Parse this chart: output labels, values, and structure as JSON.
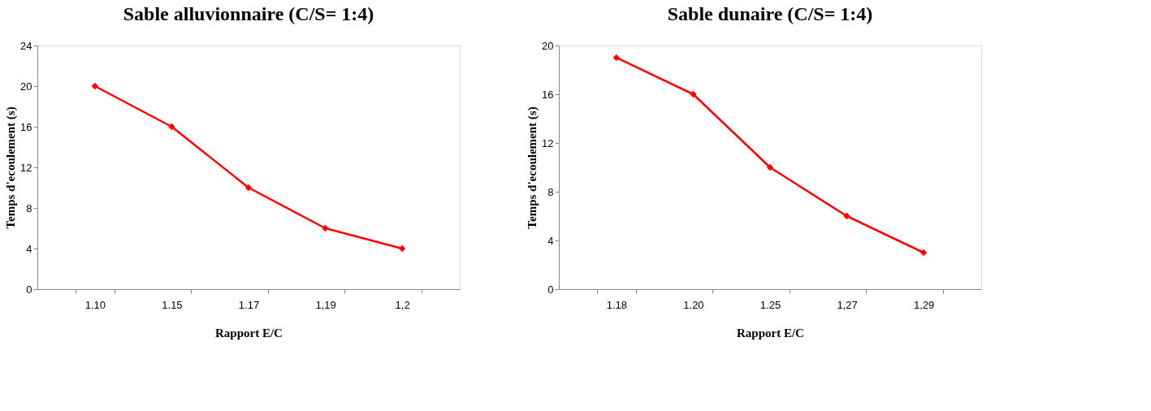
{
  "chart_data": [
    {
      "type": "line",
      "title": "Sable alluvionnaire (C/S= 1:4)",
      "xlabel": "Rapport E/C",
      "ylabel": "Temps d'ecoulement (s)",
      "categories": [
        "1.10",
        "1.15",
        "1.17",
        "1,19",
        "1,2"
      ],
      "series": [
        {
          "color": "#ff0000",
          "values": [
            20,
            16,
            10,
            6,
            4
          ]
        }
      ],
      "ylim": [
        0,
        24
      ],
      "yticks": [
        0,
        4,
        8,
        12,
        16,
        20,
        24
      ],
      "grid": false,
      "marker": "diamond",
      "line_style": "solid"
    },
    {
      "type": "line",
      "title": "Sable dunaire (C/S= 1:4)",
      "xlabel": "Rapport E/C",
      "ylabel": "Temps d'ecoulement (s)",
      "categories": [
        "1.18",
        "1.20",
        "1.25",
        "1,27",
        "1,29"
      ],
      "series": [
        {
          "color": "#ff0000",
          "values": [
            19,
            16,
            10,
            6,
            3
          ]
        }
      ],
      "ylim": [
        0,
        20
      ],
      "yticks": [
        0,
        4,
        8,
        12,
        16,
        20
      ],
      "grid": false,
      "marker": "diamond",
      "line_style": "solid"
    }
  ]
}
